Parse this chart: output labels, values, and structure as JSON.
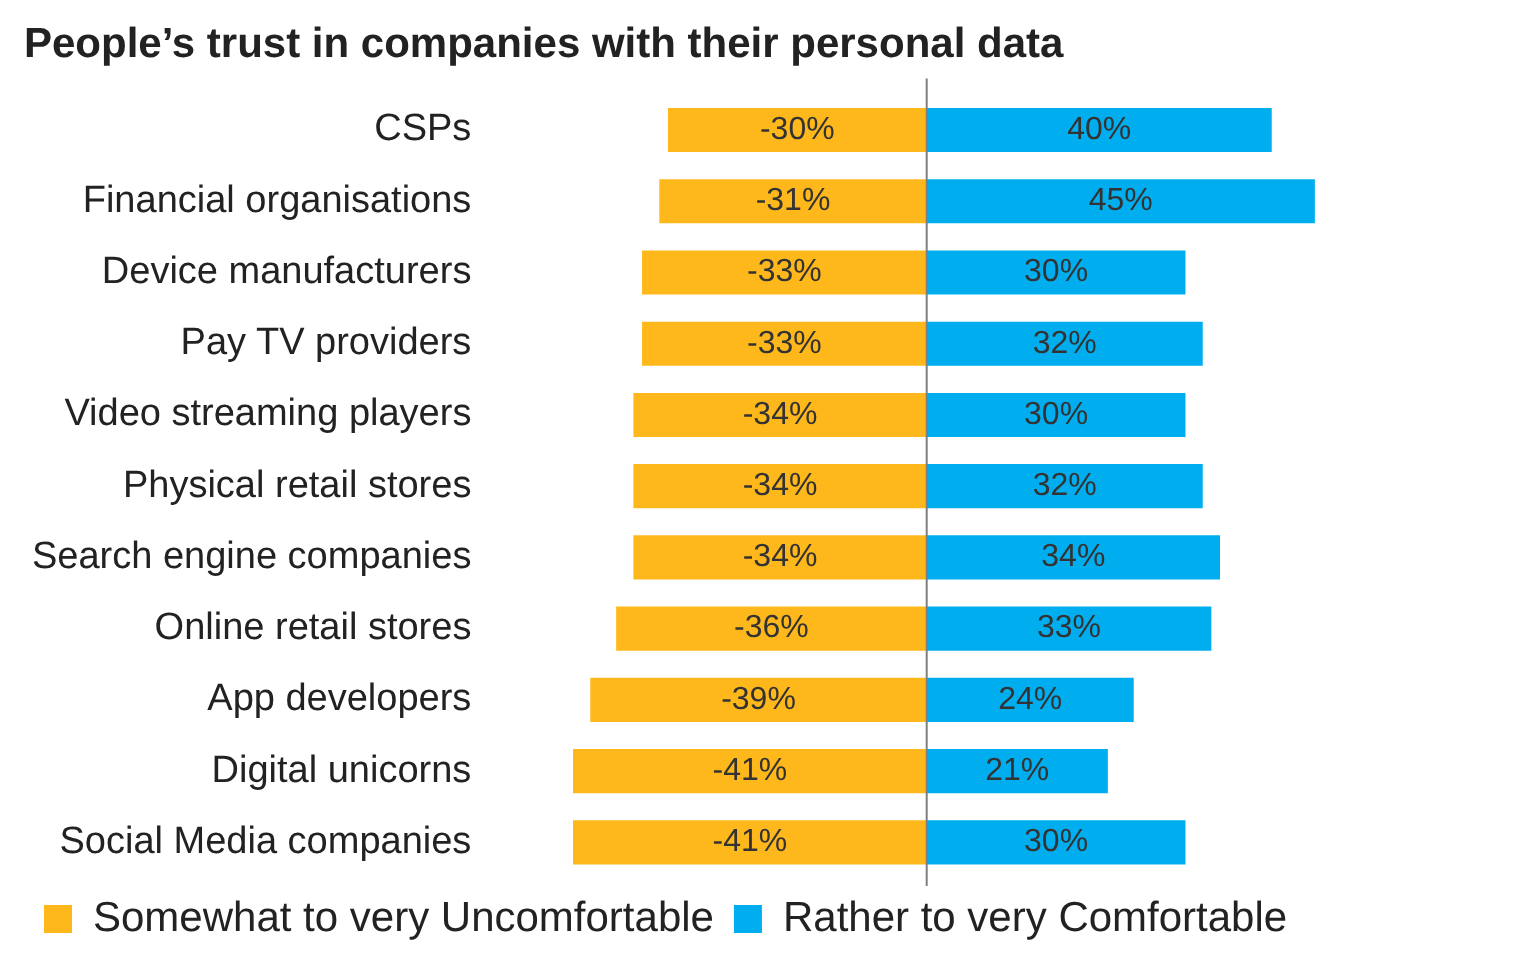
{
  "chart_data": {
    "type": "bar",
    "orientation": "horizontal",
    "stacked": true,
    "title": "People’s trust in companies with their personal data",
    "categories": [
      "CSPs",
      "Financial organisations",
      "Device manufacturers",
      "Pay TV providers",
      "Video streaming players",
      "Physical retail stores",
      "Search engine companies",
      "Online retail stores",
      "App developers",
      "Digital unicorns",
      "Social Media companies"
    ],
    "series": [
      {
        "name": "Somewhat to very Uncomfortable",
        "color": "#ffb81c",
        "values": [
          -30,
          -31,
          -33,
          -33,
          -34,
          -34,
          -34,
          -36,
          -39,
          -41,
          -41
        ],
        "value_labels": [
          "-30%",
          "-31%",
          "-33%",
          "-33%",
          "-34%",
          "-34%",
          "-34%",
          "-36%",
          "-39%",
          "-41%",
          "-41%"
        ]
      },
      {
        "name": "Rather to very Comfortable",
        "color": "#00aeef",
        "values": [
          40,
          45,
          30,
          32,
          30,
          32,
          34,
          33,
          24,
          21,
          30
        ],
        "value_labels": [
          "40%",
          "45%",
          "30%",
          "32%",
          "30%",
          "32%",
          "34%",
          "33%",
          "24%",
          "21%",
          "30%"
        ]
      }
    ],
    "ref_lines": [
      {
        "axis": "x",
        "value": 0,
        "color": "#7f7f7f"
      }
    ],
    "tick_labels": "y",
    "grid": false,
    "legend": "bottom"
  }
}
